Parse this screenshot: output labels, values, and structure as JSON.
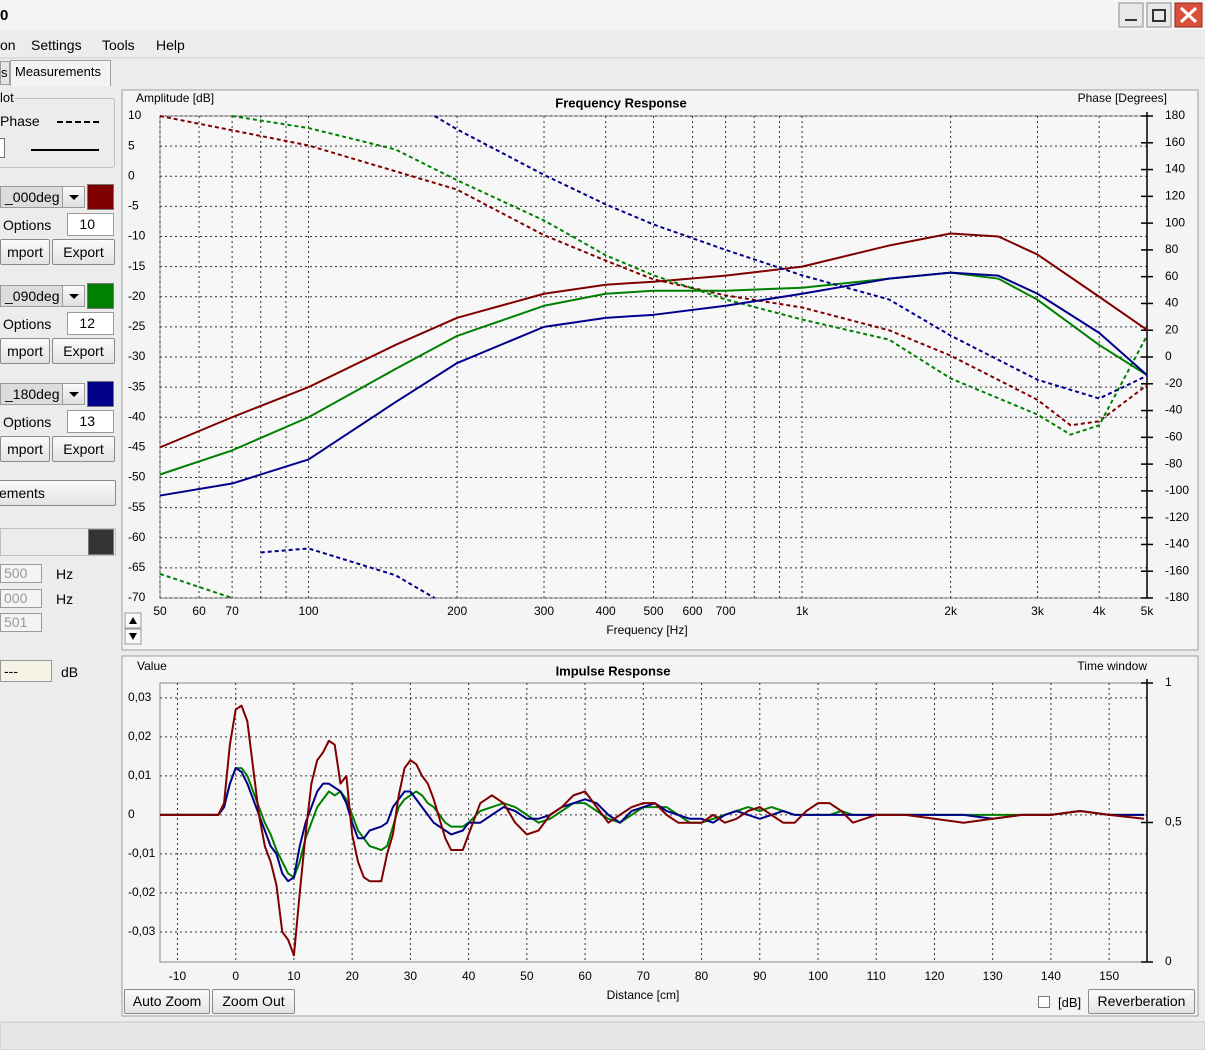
{
  "window": {
    "title": "0"
  },
  "menu": [
    "on",
    "Settings",
    "Tools",
    "Help"
  ],
  "tabs": [
    "s",
    "Measurements"
  ],
  "panel": {
    "group_title": "lot",
    "phase_label": "Phase",
    "measurements": [
      {
        "options": "Options",
        "count": 10,
        "import": "mport",
        "export": "Export"
      },
      {
        "options": "Options",
        "count": 12,
        "import": "mport",
        "export": "Export"
      },
      {
        "options": "Options",
        "count": 13,
        "import": "mport",
        "export": "Export"
      }
    ],
    "button": "ements",
    "freq_inputs": [
      {
        "value": "500",
        "unit": "Hz"
      },
      {
        "value": "000",
        "unit": "Hz"
      },
      {
        "value": "501"
      }
    ],
    "level": {
      "value": "---",
      "unit": "dB"
    }
  },
  "chart_data": [
    {
      "type": "line",
      "title": "Frequency Response",
      "ylabel": "Amplitude [dB]",
      "y2label": "Phase [Degrees]",
      "xlabel": "Frequency [Hz]",
      "xscale": "log",
      "grid": true,
      "xlim": [
        50,
        5000
      ],
      "ylim": [
        -70,
        10
      ],
      "y2lim": [
        -180,
        180
      ],
      "xticks": [
        50,
        60,
        70,
        100,
        200,
        300,
        400,
        500,
        600,
        700,
        {
          "value": 1000,
          "label": "1k"
        },
        {
          "value": 2000,
          "label": "2k"
        },
        {
          "value": 3000,
          "label": "3k"
        },
        {
          "value": 4000,
          "label": "4k"
        },
        {
          "value": 5000,
          "label": "5k"
        }
      ],
      "xminor": [
        80,
        90,
        800,
        900
      ],
      "yticks": [
        -70,
        -65,
        -60,
        -55,
        -50,
        -45,
        -40,
        -35,
        -30,
        -25,
        -20,
        -15,
        -10,
        -5,
        0,
        5,
        10
      ],
      "y2ticks": [
        -180,
        -160,
        -140,
        -120,
        -100,
        -80,
        -60,
        -40,
        -20,
        0,
        20,
        40,
        60,
        80,
        100,
        120,
        140,
        160,
        180
      ],
      "x": [
        50,
        70,
        100,
        150,
        200,
        300,
        400,
        500,
        700,
        1000,
        1500,
        2000,
        2500,
        3000,
        4000,
        5000
      ],
      "series": [
        {
          "name": "_000deg",
          "color": "#800000",
          "values": [
            -45,
            -40,
            -35,
            -28,
            -23.5,
            -19.5,
            -18,
            -17.5,
            -16.5,
            -15,
            -11.5,
            -9.5,
            -10,
            -13,
            -20,
            -25.5
          ],
          "phase_x": [
            50,
            100,
            200,
            300,
            400,
            500,
            700,
            1000,
            1500,
            2000,
            3000,
            3500,
            4000,
            5000
          ],
          "phase": [
            180,
            158,
            125,
            91,
            72,
            58,
            46,
            37,
            20,
            1,
            -32,
            -51,
            -48,
            -21
          ]
        },
        {
          "name": "_090deg",
          "color": "#008000",
          "values": [
            -49.5,
            -45.5,
            -40,
            -32,
            -26.5,
            -21.5,
            -19.5,
            -19,
            -19,
            -18.5,
            -17,
            -16,
            -17,
            -20.5,
            -28,
            -33
          ],
          "phase_x": [
            50,
            70,
            70,
            70,
            100,
            150,
            200,
            300,
            400,
            500,
            700,
            1000,
            1500,
            2000,
            3000,
            3500,
            4000,
            5000
          ],
          "phase": [
            -162,
            -180,
            null,
            180,
            171,
            155,
            132,
            102,
            76,
            61,
            43,
            28,
            13,
            -16,
            -43,
            -58,
            -51,
            16
          ]
        },
        {
          "name": "_180deg",
          "color": "#00008b",
          "values": [
            -53,
            -51,
            -47,
            -37.5,
            -31,
            -25,
            -23.5,
            -23,
            -21.5,
            -19.5,
            -17,
            -16,
            -16.5,
            -19.5,
            -26,
            -33
          ],
          "phase_x": [
            80,
            100,
            150,
            180,
            180,
            180,
            200,
            300,
            400,
            500,
            700,
            1000,
            1500,
            2000,
            3000,
            4000,
            5000
          ],
          "phase": [
            -146,
            -143,
            -163,
            -180,
            null,
            180,
            170,
            136,
            114,
            99,
            80,
            61,
            43,
            16,
            -17,
            -31,
            -14
          ]
        }
      ]
    },
    {
      "type": "line",
      "title": "Impulse Response",
      "ylabel": "Value",
      "y2label": "Time window",
      "xlabel": "Distance [cm]",
      "grid": true,
      "xlim": [
        -13,
        156.5
      ],
      "ylim": [
        -0.0377,
        0.0338
      ],
      "y2lim": [
        0,
        1
      ],
      "xticks": [
        -10,
        0,
        10,
        20,
        30,
        40,
        50,
        60,
        70,
        80,
        90,
        100,
        110,
        120,
        130,
        140,
        150
      ],
      "yticks": [
        {
          "value": -0.03,
          "label": "-0,03"
        },
        {
          "value": -0.02,
          "label": "-0,02"
        },
        {
          "value": -0.01,
          "label": "-0,01"
        },
        0,
        {
          "value": 0.01,
          "label": "0,01"
        },
        {
          "value": 0.02,
          "label": "0,02"
        },
        {
          "value": 0.03,
          "label": "0,03"
        }
      ],
      "y2ticks": [
        0,
        {
          "value": 0.5,
          "label": "0,5"
        },
        1
      ],
      "x": [
        -13,
        -5,
        -3,
        -2,
        -1,
        0,
        1,
        2,
        3,
        4,
        5,
        6,
        7,
        8,
        9,
        10,
        11,
        12,
        13,
        14,
        15,
        16,
        17,
        18,
        19,
        20,
        21,
        22,
        23,
        25,
        26,
        27,
        28,
        29,
        30,
        31,
        32,
        33,
        34,
        36,
        37,
        39,
        40,
        42,
        44,
        46,
        48,
        50,
        52,
        54,
        56,
        58,
        60,
        62,
        64,
        66,
        68,
        70,
        72,
        74,
        76,
        78,
        80,
        82,
        84,
        86,
        88,
        90,
        92,
        94,
        96,
        98,
        100,
        102,
        104,
        106,
        108,
        110,
        115,
        120,
        125,
        130,
        135,
        140,
        145,
        150,
        156
      ],
      "series": [
        {
          "name": "_090deg",
          "color": "#008000",
          "values": [
            0,
            0,
            0,
            0.002,
            0.008,
            0.012,
            0.012,
            0.01,
            0.006,
            0.002,
            -0.002,
            -0.005,
            -0.009,
            -0.012,
            -0.015,
            -0.016,
            -0.012,
            -0.006,
            -0.002,
            0.002,
            0.004,
            0.006,
            0.005,
            0.006,
            0.004,
            0,
            -0.004,
            -0.006,
            -0.008,
            -0.009,
            -0.008,
            -0.003,
            0.002,
            0.004,
            0.005,
            0.006,
            0.005,
            0.003,
            0.002,
            -0.002,
            -0.003,
            -0.003,
            -0.002,
            0.001,
            0.002,
            0.003,
            0.002,
            0,
            -0.002,
            -0.001,
            0.001,
            0.003,
            0.003,
            0.001,
            -0.001,
            -0.002,
            0,
            0.002,
            0.002,
            0.002,
            0,
            -0.002,
            -0.002,
            -0.001,
            0,
            0.001,
            0.002,
            0.001,
            0.002,
            0.001,
            0,
            0,
            0,
            0,
            0.001,
            0,
            0,
            0,
            0,
            0,
            0,
            0,
            0,
            0,
            0.001,
            0,
            0
          ]
        },
        {
          "name": "_180deg",
          "color": "#00008b",
          "values": [
            0,
            0,
            0,
            0.002,
            0.008,
            0.012,
            0.011,
            0.008,
            0.004,
            0,
            -0.004,
            -0.008,
            -0.01,
            -0.015,
            -0.017,
            -0.016,
            -0.008,
            -0.002,
            0.002,
            0.006,
            0.008,
            0.008,
            0.007,
            0.006,
            0.003,
            -0.002,
            -0.006,
            -0.006,
            -0.004,
            -0.003,
            -0.002,
            0.002,
            0.004,
            0.006,
            0.006,
            0.004,
            0.002,
            0,
            -0.002,
            -0.004,
            -0.005,
            -0.004,
            -0.002,
            -0.002,
            0,
            0.002,
            0.001,
            -0.001,
            -0.001,
            0,
            0.002,
            0.003,
            0.004,
            0.003,
            0,
            -0.002,
            0.001,
            0.002,
            0.003,
            0.001,
            0,
            -0.001,
            -0.001,
            -0.002,
            0,
            0.001,
            0,
            -0.001,
            0,
            0.001,
            0,
            0,
            0,
            0,
            0,
            0,
            0,
            0,
            0,
            0,
            0,
            -0.001,
            0,
            0,
            0.001,
            0,
            0
          ]
        },
        {
          "name": "_000deg",
          "color": "#800000",
          "values": [
            0,
            0,
            0,
            0.003,
            0.018,
            0.027,
            0.028,
            0.024,
            0.012,
            0,
            -0.008,
            -0.012,
            -0.018,
            -0.03,
            -0.032,
            -0.036,
            -0.02,
            -0.005,
            0.008,
            0.014,
            0.016,
            0.019,
            0.018,
            0.008,
            0.01,
            -0.005,
            -0.012,
            -0.016,
            -0.017,
            -0.017,
            -0.01,
            -0.005,
            0.005,
            0.012,
            0.014,
            0.013,
            0.01,
            0.008,
            0.004,
            -0.006,
            -0.009,
            -0.009,
            -0.005,
            0.003,
            0.005,
            0.003,
            -0.002,
            -0.005,
            -0.004,
            0,
            0.002,
            0.005,
            0.006,
            0.002,
            -0.002,
            0,
            0.002,
            0.003,
            0.003,
            0,
            -0.002,
            -0.002,
            -0.002,
            0,
            -0.002,
            -0.001,
            0.001,
            0.002,
            0,
            -0.002,
            -0.002,
            0.001,
            0.003,
            0.003,
            0.001,
            -0.002,
            -0.001,
            0,
            0,
            -0.001,
            -0.002,
            -0.001,
            0,
            0,
            0.001,
            0,
            -0.001
          ]
        }
      ]
    }
  ],
  "controls": {
    "auto_zoom": "Auto Zoom",
    "zoom_out": "Zoom Out",
    "db": "[dB]",
    "reverberation": "Reverberation"
  }
}
